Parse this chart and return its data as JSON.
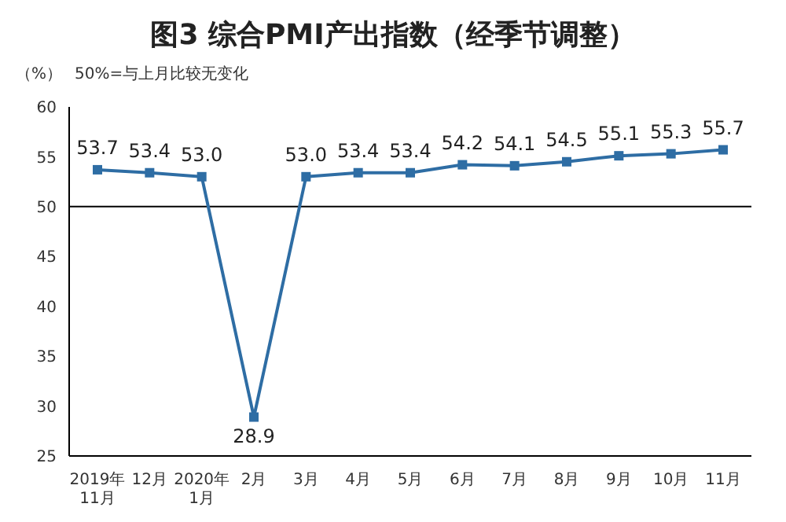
{
  "chart_data": {
    "type": "line",
    "title": "图3 综合PMI产出指数（经季节调整）",
    "ylabel": "（%）",
    "annotations": [
      "50%=与上月比较无变化"
    ],
    "categories": [
      "2019年\n11月",
      "12月",
      "2020年\n1月",
      "2月",
      "3月",
      "4月",
      "5月",
      "6月",
      "7月",
      "8月",
      "9月",
      "10月",
      "11月"
    ],
    "series": [
      {
        "color": "#2e6da4",
        "values": [
          53.7,
          53.4,
          53.0,
          28.9,
          53.0,
          53.4,
          53.4,
          54.2,
          54.1,
          54.5,
          55.1,
          55.3,
          55.7
        ],
        "value_labels": [
          "53.7",
          "53.4",
          "53.0",
          "28.9",
          "53.0",
          "53.4",
          "53.4",
          "54.2",
          "54.1",
          "54.5",
          "55.1",
          "55.3",
          "55.7"
        ]
      }
    ],
    "ylim": [
      25,
      60
    ],
    "yticks": [
      25,
      30,
      35,
      40,
      45,
      50,
      55,
      60
    ],
    "grid": false,
    "legend": false,
    "marker": "square",
    "line_style": "solid",
    "ref_lines": [
      {
        "axis": "y",
        "value": 50,
        "color": "#000000",
        "line_style": "solid"
      }
    ]
  }
}
